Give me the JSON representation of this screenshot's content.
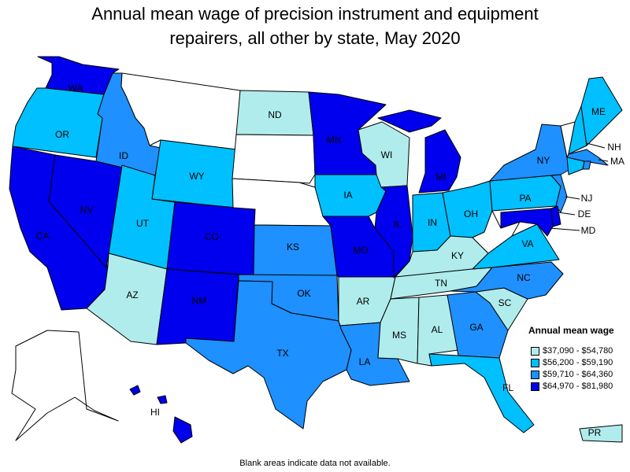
{
  "title_line1": "Annual mean wage of precision instrument and equipment",
  "title_line2": "repairers, all other by state, May 2020",
  "legend": {
    "title": "Annual mean wage",
    "bins": [
      {
        "label": "$37,090 - $54,780",
        "color": "#b0ecec"
      },
      {
        "label": "$56,200 - $59,190",
        "color": "#00c0ff"
      },
      {
        "label": "$59,710 - $64,360",
        "color": "#1e90ff"
      },
      {
        "label": "$64,970 - $81,980",
        "color": "#0000ee"
      }
    ]
  },
  "no_data_color": "#ffffff",
  "footnote": "Blank areas indicate data not available.",
  "states": {
    "WA": 3,
    "OR": 1,
    "CA": 3,
    "NV": 3,
    "ID": 2,
    "MT": -1,
    "WY": 1,
    "UT": 1,
    "AZ": 0,
    "CO": 3,
    "NM": 3,
    "ND": 0,
    "SD": -1,
    "NE": -1,
    "KS": 2,
    "OK": 2,
    "TX": 2,
    "MN": 3,
    "IA": 1,
    "MO": 3,
    "AR": 0,
    "LA": 2,
    "WI": 0,
    "IL": 3,
    "MI": 3,
    "IN": 1,
    "OH": 1,
    "KY": 0,
    "TN": 0,
    "MS": 0,
    "AL": 0,
    "GA": 2,
    "FL": 1,
    "SC": 0,
    "NC": 2,
    "VA": 1,
    "WV": -1,
    "PA": 1,
    "NY": 2,
    "NJ": 2,
    "DE": 3,
    "MD": 3,
    "VT": -1,
    "NH": 1,
    "ME": 1,
    "MA": 2,
    "CT": 1,
    "RI": 2,
    "AK": -1,
    "HI": 3,
    "PR": 0
  },
  "label_texts": {
    "WA": "WA",
    "OR": "OR",
    "CA": "CA",
    "NV": "NV",
    "ID": "ID",
    "WY": "WY",
    "UT": "UT",
    "AZ": "AZ",
    "CO": "CO",
    "NM": "NM",
    "ND": "ND",
    "KS": "KS",
    "OK": "OK",
    "TX": "TX",
    "MN": "MN",
    "IA": "IA",
    "MO": "MO",
    "AR": "AR",
    "LA": "LA",
    "WI": "WI",
    "IL": "IL",
    "MI": "MI",
    "IN": "IN",
    "OH": "OH",
    "KY": "KY",
    "TN": "TN",
    "MS": "MS",
    "AL": "AL",
    "GA": "GA",
    "FL": "FL",
    "SC": "SC",
    "NC": "NC",
    "VA": "VA",
    "PA": "PA",
    "NY": "NY",
    "NJ": "NJ",
    "DE": "DE",
    "MD": "MD",
    "NH": "NH",
    "ME": "ME",
    "MA": "MA",
    "HI": "HI",
    "PR": "PR"
  }
}
